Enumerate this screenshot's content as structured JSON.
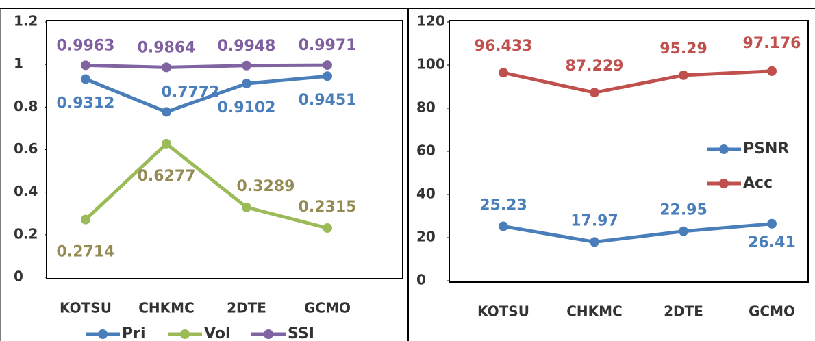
{
  "chart_data": [
    {
      "type": "line",
      "categories": [
        "KOTSU",
        "CHKMC",
        "2DTE",
        "GCMO"
      ],
      "series": [
        {
          "name": "Pri",
          "color": "#4a7ebb",
          "label_color": "#4a7ebb",
          "values": [
            0.9312,
            0.7772,
            0.9102,
            0.9451
          ]
        },
        {
          "name": "Vol",
          "color": "#9bbb59",
          "label_color": "#948a54",
          "values": [
            0.2714,
            0.6277,
            0.3289,
            0.2315
          ]
        },
        {
          "name": "SSI",
          "color": "#8064a2",
          "label_color": "#7f5fa0",
          "values": [
            0.9963,
            0.9864,
            0.9948,
            0.9971
          ]
        }
      ],
      "ylim": [
        0,
        1.2
      ],
      "yticks": [
        0,
        0.2,
        0.4,
        0.6,
        0.8,
        1,
        1.2
      ],
      "legend": "bottom"
    },
    {
      "type": "line",
      "categories": [
        "KOTSU",
        "CHKMC",
        "2DTE",
        "GCMO"
      ],
      "series": [
        {
          "name": "PSNR",
          "color": "#4a7ebb",
          "label_color": "#4a7ebb",
          "values": [
            25.23,
            17.97,
            22.95,
            26.41
          ]
        },
        {
          "name": "Acc",
          "color": "#c0504d",
          "label_color": "#c0504d",
          "values": [
            96.433,
            87.229,
            95.29,
            97.176
          ]
        }
      ],
      "ylim": [
        0,
        120
      ],
      "yticks": [
        0,
        20,
        40,
        60,
        80,
        100,
        120
      ],
      "legend": "right"
    }
  ]
}
